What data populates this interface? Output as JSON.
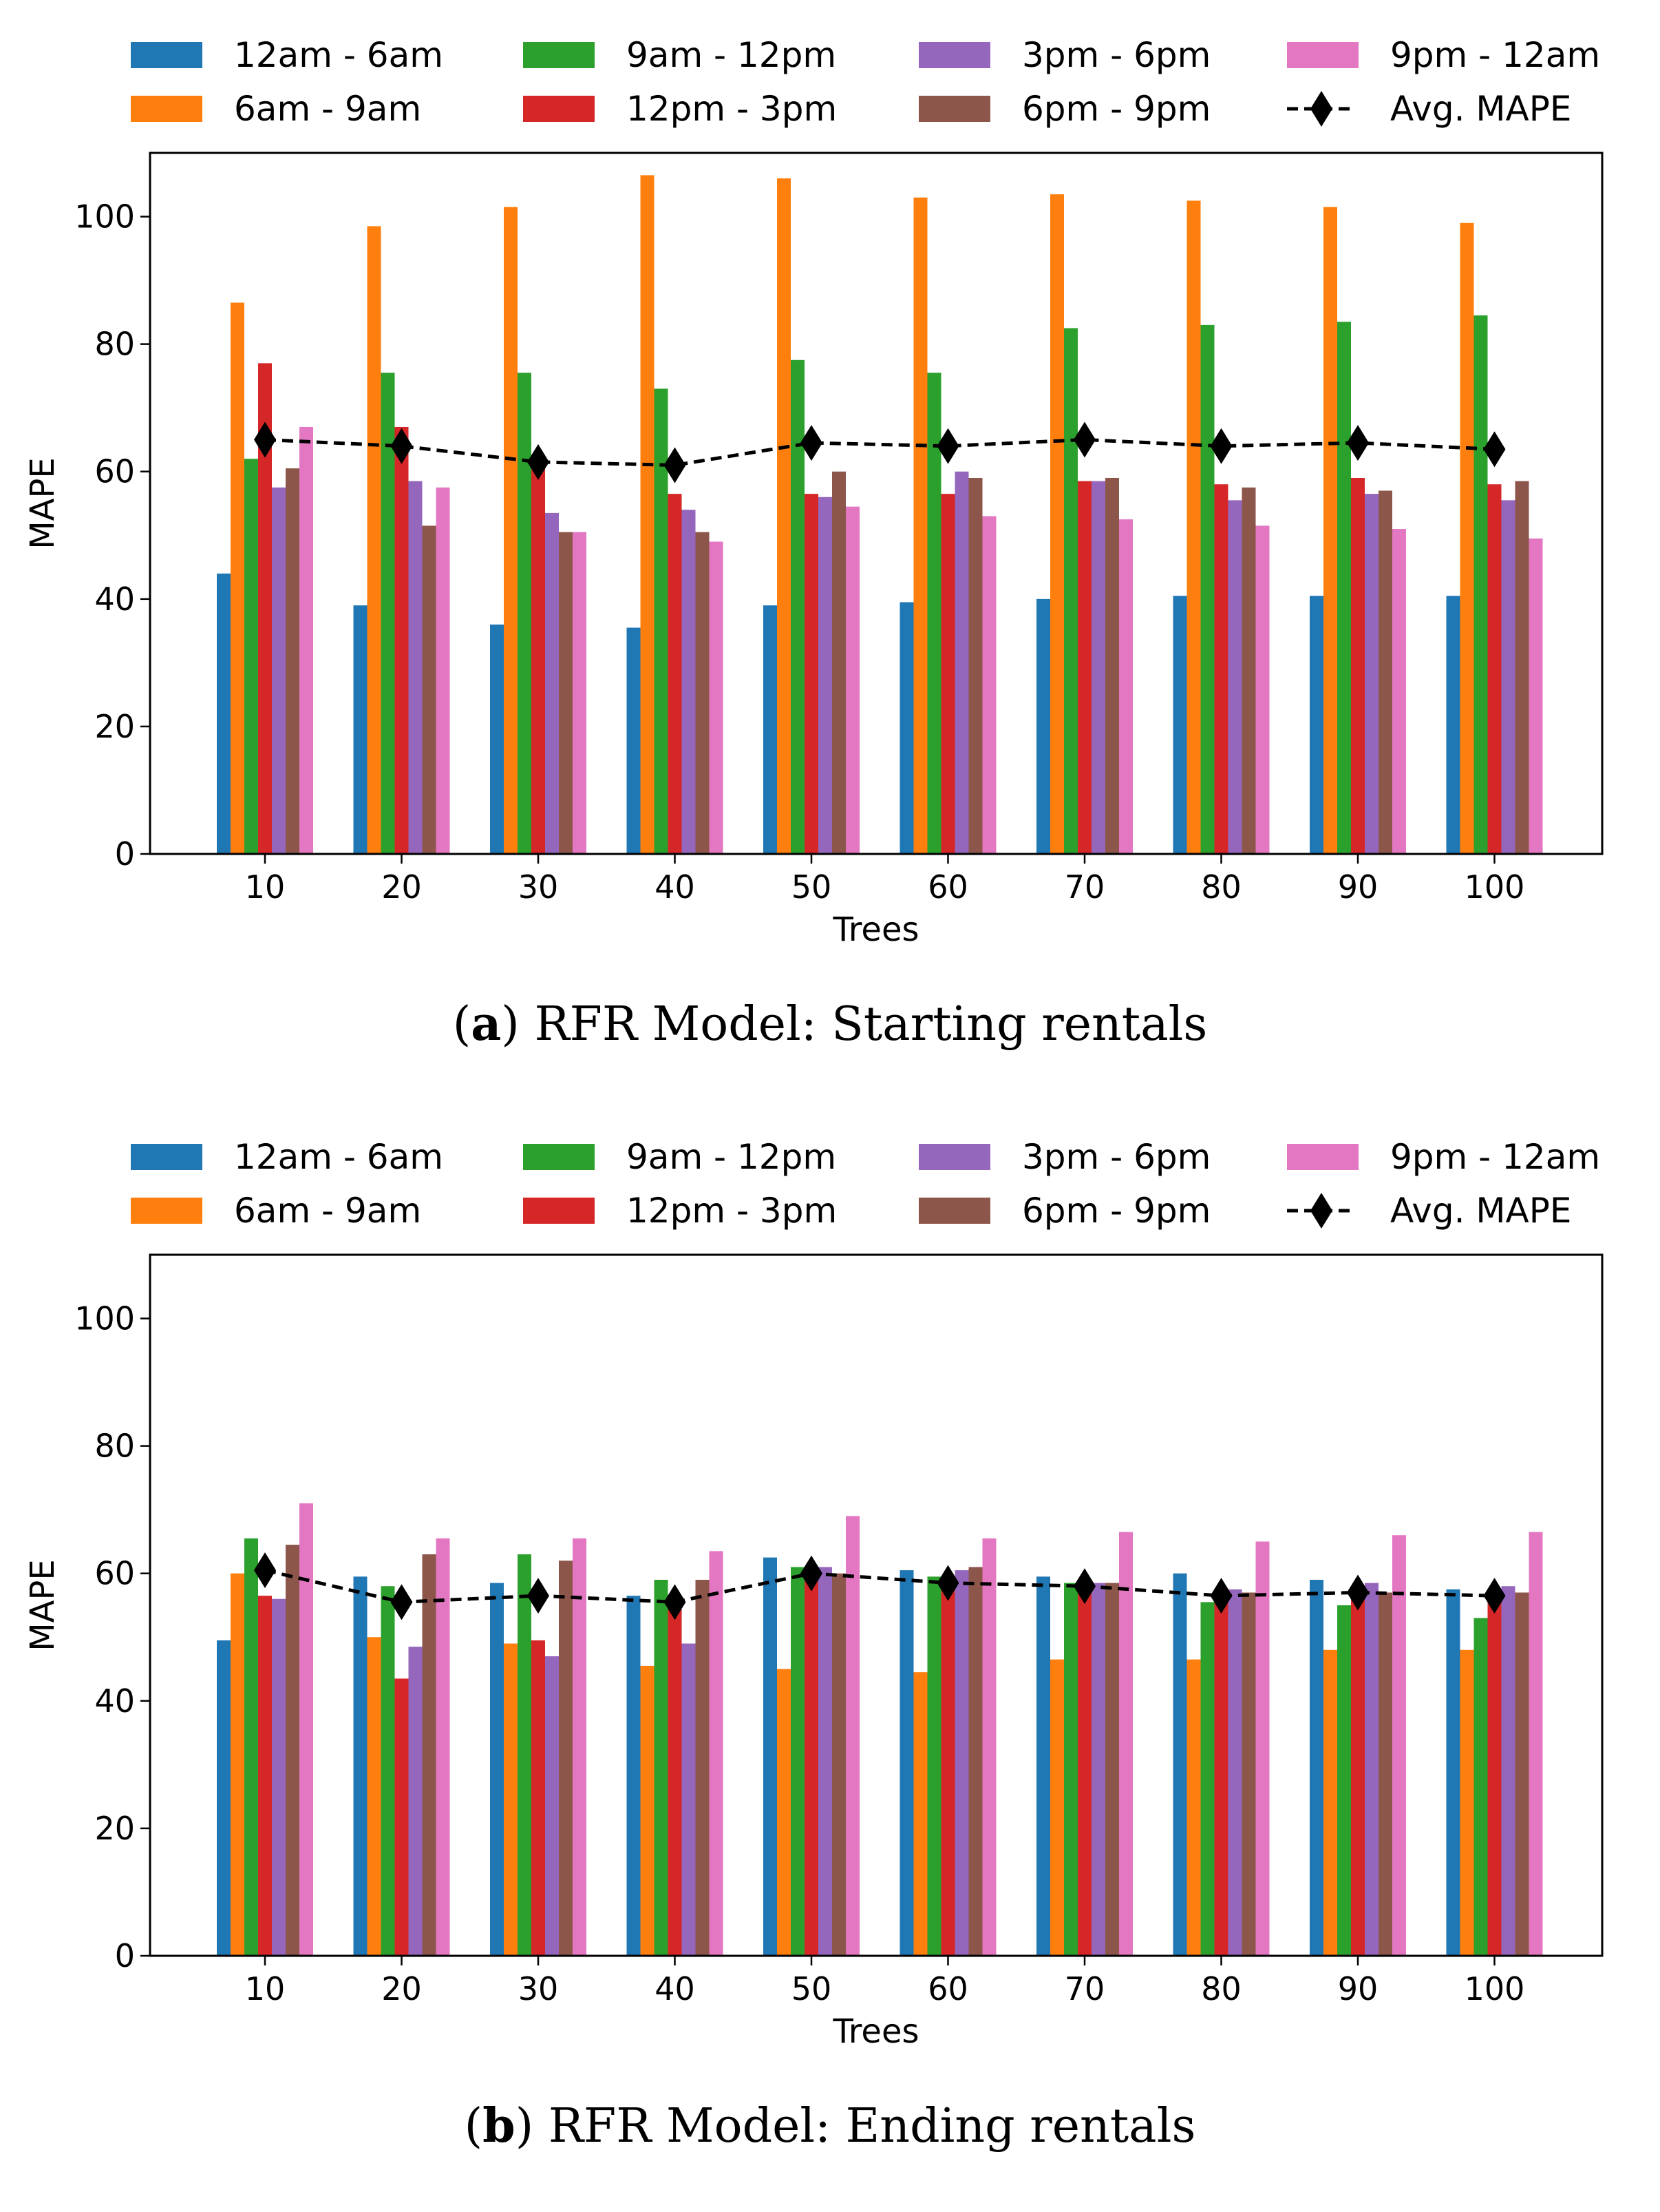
{
  "legend": [
    {
      "label": "12am - 6am",
      "color": "#1f77b4"
    },
    {
      "label": "6am - 9am",
      "color": "#ff7f0e"
    },
    {
      "label": "9am - 12pm",
      "color": "#2ca02c"
    },
    {
      "label": "12pm - 3pm",
      "color": "#d62728"
    },
    {
      "label": "3pm - 6pm",
      "color": "#9467bd"
    },
    {
      "label": "6pm - 9pm",
      "color": "#8c564b"
    },
    {
      "label": "9pm -  12am",
      "color": "#e377c2"
    },
    {
      "label": "Avg. MAPE",
      "color": "#000000",
      "marker": "diamond",
      "style": "dashed"
    }
  ],
  "chart_data": [
    {
      "type": "bar",
      "caption_prefix": "(",
      "caption_letter": "a",
      "caption_rest": ") RFR Model: Starting rentals",
      "xlabel": "Trees",
      "ylabel": "MAPE",
      "ylim": [
        0,
        110
      ],
      "yticks": [
        0,
        20,
        40,
        60,
        80,
        100
      ],
      "categories": [
        "10",
        "20",
        "30",
        "40",
        "50",
        "60",
        "70",
        "80",
        "90",
        "100"
      ],
      "series": [
        {
          "name": "12am - 6am",
          "color": "#1f77b4",
          "values": [
            44,
            39,
            36,
            35.5,
            39,
            39.5,
            40,
            40.5,
            40.5,
            40.5
          ]
        },
        {
          "name": "6am - 9am",
          "color": "#ff7f0e",
          "values": [
            86.5,
            98.5,
            101.5,
            106.5,
            106,
            103,
            103.5,
            102.5,
            101.5,
            99
          ]
        },
        {
          "name": "9am - 12pm",
          "color": "#2ca02c",
          "values": [
            62,
            75.5,
            75.5,
            73,
            77.5,
            75.5,
            82.5,
            83,
            83.5,
            84.5
          ]
        },
        {
          "name": "12pm - 3pm",
          "color": "#d62728",
          "values": [
            77,
            67,
            61,
            56.5,
            56.5,
            56.5,
            58.5,
            58,
            59,
            58
          ]
        },
        {
          "name": "3pm - 6pm",
          "color": "#9467bd",
          "values": [
            57.5,
            58.5,
            53.5,
            54,
            56,
            60,
            58.5,
            55.5,
            56.5,
            55.5
          ]
        },
        {
          "name": "6pm - 9pm",
          "color": "#8c564b",
          "values": [
            60.5,
            51.5,
            50.5,
            50.5,
            60,
            59,
            59,
            57.5,
            57,
            58.5
          ]
        },
        {
          "name": "9pm -  12am",
          "color": "#e377c2",
          "values": [
            67,
            57.5,
            50.5,
            49,
            54.5,
            53,
            52.5,
            51.5,
            51,
            49.5
          ]
        }
      ],
      "avg": {
        "name": "Avg. MAPE",
        "values": [
          65,
          64,
          61.5,
          61,
          64.5,
          64,
          65,
          64,
          64.5,
          63.5
        ]
      }
    },
    {
      "type": "bar",
      "caption_prefix": "(",
      "caption_letter": "b",
      "caption_rest": ") RFR Model: Ending rentals",
      "xlabel": "Trees",
      "ylabel": "MAPE",
      "ylim": [
        0,
        110
      ],
      "yticks": [
        0,
        20,
        40,
        60,
        80,
        100
      ],
      "categories": [
        "10",
        "20",
        "30",
        "40",
        "50",
        "60",
        "70",
        "80",
        "90",
        "100"
      ],
      "series": [
        {
          "name": "12am - 6am",
          "color": "#1f77b4",
          "values": [
            49.5,
            59.5,
            58.5,
            56.5,
            62.5,
            60.5,
            59.5,
            60,
            59,
            57.5
          ]
        },
        {
          "name": "6am - 9am",
          "color": "#ff7f0e",
          "values": [
            60,
            50,
            49,
            45.5,
            45,
            44.5,
            46.5,
            46.5,
            48,
            48
          ]
        },
        {
          "name": "9am - 12pm",
          "color": "#2ca02c",
          "values": [
            65.5,
            58,
            63,
            59,
            61,
            59.5,
            58.5,
            55.5,
            55,
            53
          ]
        },
        {
          "name": "12pm - 3pm",
          "color": "#d62728",
          "values": [
            56.5,
            43.5,
            49.5,
            56,
            59,
            59,
            57.5,
            56,
            56.5,
            55.5
          ]
        },
        {
          "name": "3pm - 6pm",
          "color": "#9467bd",
          "values": [
            56,
            48.5,
            47,
            49,
            61,
            60.5,
            58.5,
            57.5,
            58.5,
            58
          ]
        },
        {
          "name": "6pm - 9pm",
          "color": "#8c564b",
          "values": [
            64.5,
            63,
            62,
            59,
            60,
            61,
            58.5,
            57,
            57,
            57
          ]
        },
        {
          "name": "9pm -  12am",
          "color": "#e377c2",
          "values": [
            71,
            65.5,
            65.5,
            63.5,
            69,
            65.5,
            66.5,
            65,
            66,
            66.5
          ]
        }
      ],
      "avg": {
        "name": "Avg. MAPE",
        "values": [
          60.5,
          55.5,
          56.5,
          55.5,
          60,
          58.5,
          58,
          56.5,
          57,
          56.5
        ]
      }
    }
  ]
}
